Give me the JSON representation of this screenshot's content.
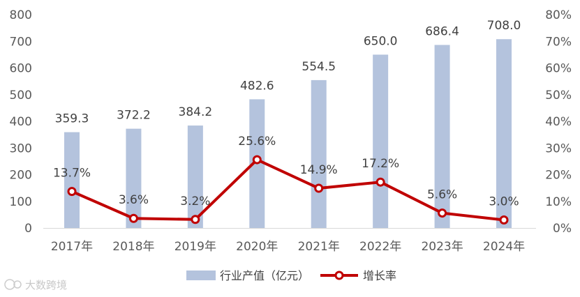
{
  "chart_data": {
    "type": "bar",
    "categories": [
      "2017年",
      "2018年",
      "2019年",
      "2020年",
      "2021年",
      "2022年",
      "2023年",
      "2024年"
    ],
    "series": [
      {
        "name": "行业产值（亿元）",
        "type": "bar",
        "axis": "left",
        "values": [
          359.3,
          372.2,
          384.2,
          482.6,
          554.5,
          650.0,
          686.4,
          708.0
        ],
        "labels": [
          "359.3",
          "372.2",
          "384.2",
          "482.6",
          "554.5",
          "650.0",
          "686.4",
          "708.0"
        ],
        "color": "#b4c3dd"
      },
      {
        "name": "增长率",
        "type": "line",
        "axis": "right",
        "values": [
          13.7,
          3.6,
          3.2,
          25.6,
          14.9,
          17.2,
          5.6,
          3.0
        ],
        "labels": [
          "13.7%",
          "3.6%",
          "3.2%",
          "25.6%",
          "14.9%",
          "17.2%",
          "5.6%",
          "3.0%"
        ],
        "color": "#c00000"
      }
    ],
    "y_left": {
      "min": 0,
      "max": 800,
      "ticks": [
        "0",
        "100",
        "200",
        "300",
        "400",
        "500",
        "600",
        "700",
        "800"
      ]
    },
    "y_right": {
      "min": 0,
      "max": 80,
      "ticks": [
        "0%",
        "10%",
        "20%",
        "30%",
        "40%",
        "50%",
        "60%",
        "70%",
        "80%"
      ]
    },
    "grid": false,
    "legend": "bottom-center"
  },
  "watermark": "大数跨境"
}
